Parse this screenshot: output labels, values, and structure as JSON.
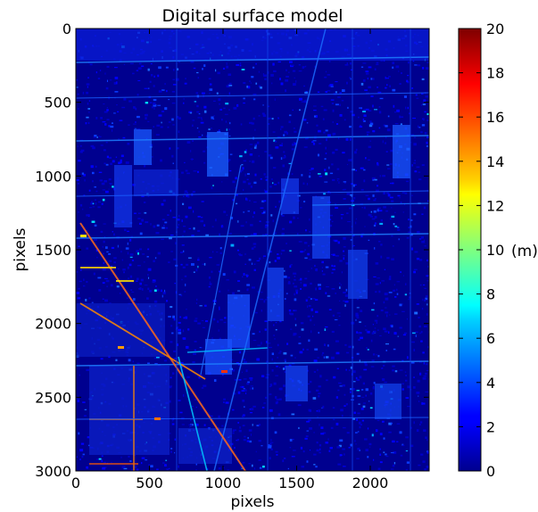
{
  "chart_data": {
    "type": "heatmap",
    "title": "Digital surface model",
    "xlabel": "pixels",
    "ylabel": "pixels",
    "xlim": [
      0,
      2400
    ],
    "ylim": [
      3000,
      0
    ],
    "x_ticks": [
      0,
      500,
      1000,
      1500,
      2000
    ],
    "y_ticks": [
      0,
      500,
      1000,
      1500,
      2000,
      2500,
      3000
    ],
    "y_inverted": true,
    "colorbar": {
      "label": "(m)",
      "range": [
        0,
        20
      ],
      "ticks": [
        0,
        2,
        4,
        6,
        8,
        10,
        12,
        14,
        16,
        18,
        20
      ],
      "colormap": "jet"
    },
    "grid": false
  },
  "colors": {
    "background_low": "#00008c",
    "mid": "#1f5cff",
    "high": "#8b0000"
  }
}
